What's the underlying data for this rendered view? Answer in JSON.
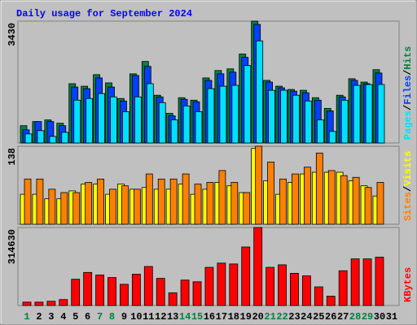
{
  "chart_data": [
    {
      "type": "bar",
      "title": "Daily usage for September 2024",
      "legend_separator": "/",
      "ylim": [
        0,
        3430
      ],
      "yticks": [
        3430
      ],
      "series": [
        {
          "name": "Hits",
          "color": "#008040",
          "values": [
            487,
            603,
            649,
            556,
            1669,
            1599,
            1924,
            1692,
            1252,
            1947,
            2295,
            1344,
            834,
            1275,
            1205,
            1831,
            2040,
            2086,
            2503,
            3430,
            1762,
            1599,
            1507,
            1484,
            1275,
            974,
            1344,
            1808,
            1715,
            2063,
            null
          ]
        },
        {
          "name": "Files",
          "color": "#0040ff",
          "values": [
            371,
            603,
            603,
            487,
            1576,
            1530,
            1831,
            1576,
            1182,
            1901,
            2156,
            1298,
            765,
            1229,
            1159,
            1762,
            1947,
            1994,
            2411,
            3338,
            1715,
            1553,
            1460,
            1414,
            1205,
            904,
            1298,
            1762,
            1669,
            1970,
            null
          ]
        },
        {
          "name": "Pages",
          "color": "#00e0ff",
          "values": [
            255,
            348,
            185,
            301,
            1205,
            1252,
            1391,
            1298,
            881,
            1298,
            1669,
            1136,
            649,
            1043,
            881,
            1530,
            1599,
            1623,
            2179,
            2874,
            1484,
            1484,
            1344,
            1182,
            649,
            325,
            1205,
            1623,
            1646,
            1646,
            null
          ]
        }
      ]
    },
    {
      "type": "bar",
      "ylim": [
        0,
        138
      ],
      "yticks": [
        138
      ],
      "series": [
        {
          "name": "Visits",
          "color": "#ffff00",
          "values": [
            53,
            53,
            45,
            45,
            59,
            71,
            71,
            53,
            71,
            62,
            65,
            62,
            62,
            71,
            53,
            62,
            74,
            68,
            56,
            134,
            77,
            53,
            74,
            89,
            92,
            92,
            92,
            77,
            68,
            50,
            null
          ]
        },
        {
          "name": "Sites",
          "color": "#ff8000",
          "values": [
            80,
            80,
            62,
            56,
            56,
            74,
            80,
            62,
            68,
            62,
            89,
            80,
            80,
            89,
            71,
            74,
            95,
            74,
            56,
            138,
            110,
            80,
            89,
            101,
            126,
            95,
            86,
            83,
            65,
            74,
            null
          ]
        }
      ]
    },
    {
      "type": "bar",
      "ylim": [
        0,
        314630
      ],
      "yticks": [
        314630
      ],
      "categories": [
        "1",
        "2",
        "3",
        "4",
        "5",
        "6",
        "7",
        "8",
        "9",
        "10",
        "11",
        "12",
        "13",
        "14",
        "15",
        "16",
        "17",
        "18",
        "19",
        "20",
        "21",
        "22",
        "23",
        "24",
        "25",
        "26",
        "27",
        "28",
        "29",
        "30",
        "31"
      ],
      "category_colors": [
        "#008040",
        "#000000",
        "#000000",
        "#000000",
        "#000000",
        "#000000",
        "#008040",
        "#008040",
        "#000000",
        "#000000",
        "#000000",
        "#000000",
        "#000000",
        "#008040",
        "#008040",
        "#000000",
        "#000000",
        "#000000",
        "#000000",
        "#000000",
        "#008040",
        "#008040",
        "#000000",
        "#000000",
        "#000000",
        "#000000",
        "#000000",
        "#008040",
        "#008040",
        "#000000",
        "#000000"
      ],
      "series": [
        {
          "name": "KBytes",
          "color": "#ff0000",
          "values": [
            13680,
            13680,
            17100,
            23940,
            106020,
            133380,
            123120,
            112860,
            85500,
            126540,
            157320,
            109440,
            51300,
            102600,
            95760,
            153900,
            171000,
            167580,
            235980,
            314630,
            153900,
            164160,
            129960,
            119700,
            75240,
            37620,
            140220,
            188100,
            188100,
            194940,
            null
          ]
        }
      ]
    }
  ]
}
